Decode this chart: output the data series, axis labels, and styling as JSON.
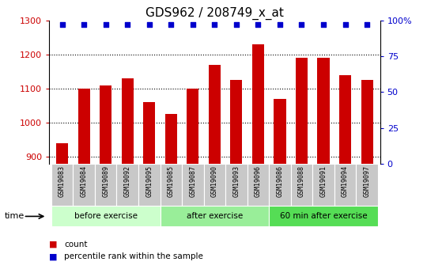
{
  "title": "GDS962 / 208749_x_at",
  "categories": [
    "GSM19083",
    "GSM19084",
    "GSM19089",
    "GSM19092",
    "GSM19095",
    "GSM19085",
    "GSM19087",
    "GSM19090",
    "GSM19093",
    "GSM19096",
    "GSM19086",
    "GSM19088",
    "GSM19091",
    "GSM19094",
    "GSM19097"
  ],
  "bar_values": [
    940,
    1100,
    1110,
    1130,
    1060,
    1025,
    1100,
    1170,
    1125,
    1230,
    1070,
    1190,
    1190,
    1140,
    1125
  ],
  "percentile_values": [
    97,
    97,
    97,
    97,
    97,
    97,
    97,
    97,
    97,
    97,
    97,
    97,
    97,
    97,
    97
  ],
  "bar_color": "#cc0000",
  "dot_color": "#0000cc",
  "ylim_left": [
    880,
    1300
  ],
  "ylim_right": [
    0,
    100
  ],
  "yticks_left": [
    900,
    1000,
    1100,
    1200,
    1300
  ],
  "yticks_right": [
    0,
    25,
    50,
    75,
    100
  ],
  "ytick_labels_right": [
    "0",
    "25",
    "50",
    "75",
    "100%"
  ],
  "groups": [
    {
      "label": "before exercise",
      "start": 0,
      "end": 5,
      "color": "#ccffcc"
    },
    {
      "label": "after exercise",
      "start": 5,
      "end": 10,
      "color": "#99ee99"
    },
    {
      "label": "60 min after exercise",
      "start": 10,
      "end": 15,
      "color": "#55dd55"
    }
  ],
  "legend_count_label": "count",
  "legend_percentile_label": "percentile rank within the sample",
  "time_label": "time",
  "tick_area_color": "#c8c8c8",
  "title_fontsize": 11,
  "axis_tick_fontsize": 8,
  "label_fontsize": 7
}
